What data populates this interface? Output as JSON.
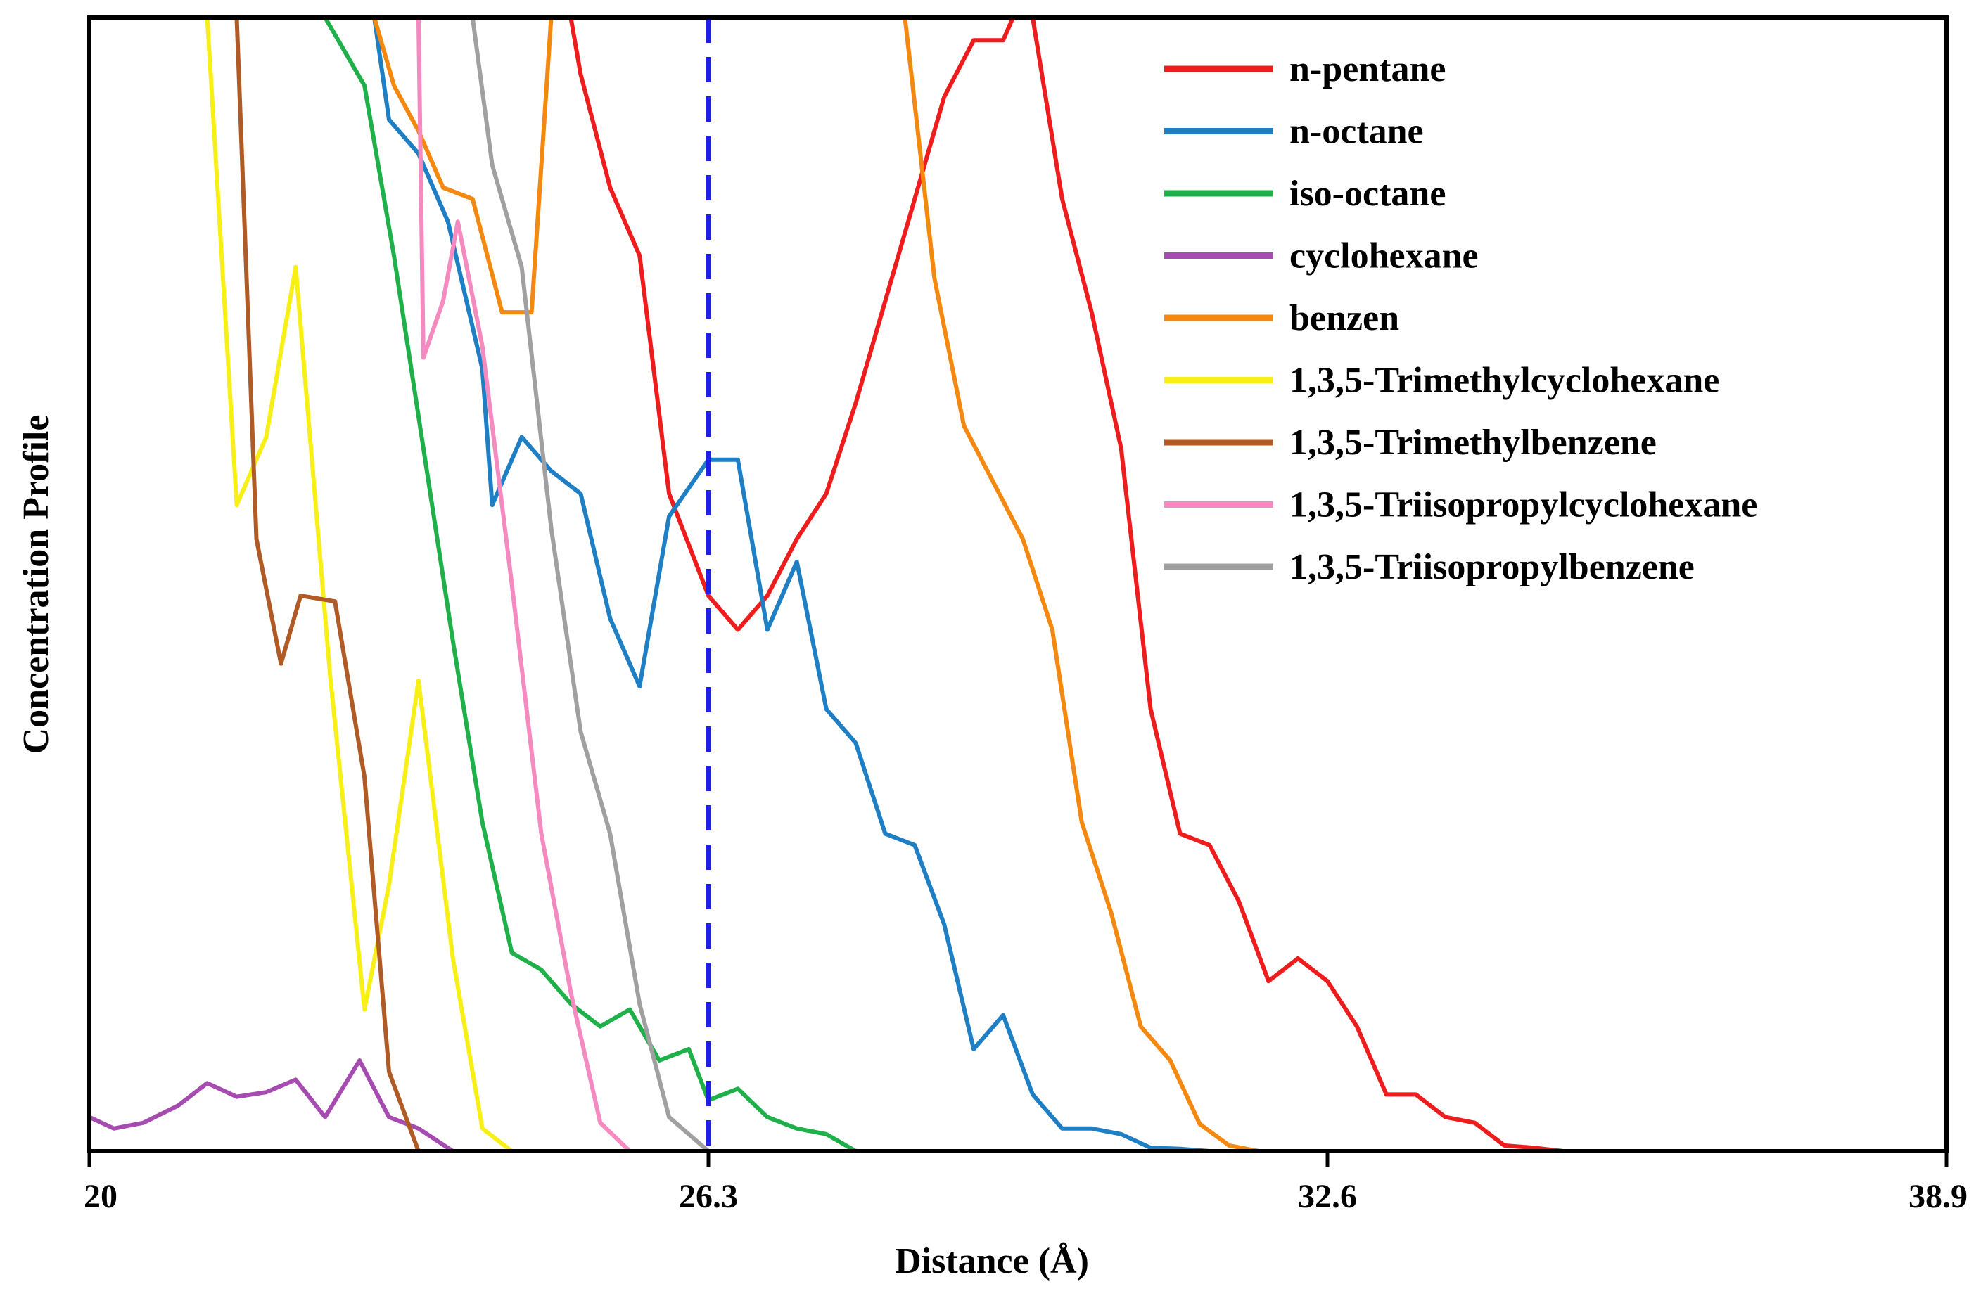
{
  "chart_data": {
    "type": "line",
    "title": "",
    "xlabel": "Distance (Å)",
    "ylabel": "Concentration Profile",
    "xlim": [
      20,
      38.9
    ],
    "ylim": [
      0,
      1
    ],
    "xticks": [
      "20",
      "26.3",
      "32.6",
      "38.9"
    ],
    "grid": false,
    "legend_position": "top-right",
    "reference_line": {
      "x": 26.3,
      "color": "#1f1fe6",
      "style": "dashed"
    },
    "series": [
      {
        "name": "n-pentane",
        "color": "#ee1c1c",
        "points": [
          [
            24.9,
            1.0
          ],
          [
            25.0,
            0.95
          ],
          [
            25.3,
            0.85
          ],
          [
            25.6,
            0.79
          ],
          [
            25.9,
            0.58
          ],
          [
            26.3,
            0.49
          ],
          [
            26.6,
            0.46
          ],
          [
            26.9,
            0.49
          ],
          [
            27.2,
            0.54
          ],
          [
            27.5,
            0.58
          ],
          [
            27.8,
            0.66
          ],
          [
            28.1,
            0.75
          ],
          [
            28.4,
            0.84
          ],
          [
            28.7,
            0.93
          ],
          [
            29.0,
            0.98
          ],
          [
            29.3,
            0.98
          ],
          [
            29.4,
            1.0
          ],
          [
            29.6,
            1.0
          ],
          [
            29.9,
            0.84
          ],
          [
            30.2,
            0.74
          ],
          [
            30.5,
            0.62
          ],
          [
            30.8,
            0.39
          ],
          [
            31.1,
            0.28
          ],
          [
            31.4,
            0.27
          ],
          [
            31.7,
            0.22
          ],
          [
            32.0,
            0.15
          ],
          [
            32.3,
            0.17
          ],
          [
            32.6,
            0.15
          ],
          [
            32.9,
            0.11
          ],
          [
            33.2,
            0.05
          ],
          [
            33.5,
            0.05
          ],
          [
            33.8,
            0.03
          ],
          [
            34.1,
            0.025
          ],
          [
            34.4,
            0.005
          ],
          [
            34.7,
            0.003
          ],
          [
            35.0,
            0.0
          ]
        ]
      },
      {
        "name": "n-octane",
        "color": "#1f7fc4",
        "points": [
          [
            22.9,
            1.0
          ],
          [
            23.05,
            0.91
          ],
          [
            23.35,
            0.88
          ],
          [
            23.65,
            0.82
          ],
          [
            24.0,
            0.69
          ],
          [
            24.1,
            0.57
          ],
          [
            24.4,
            0.63
          ],
          [
            24.7,
            0.6
          ],
          [
            25.0,
            0.58
          ],
          [
            25.3,
            0.47
          ],
          [
            25.6,
            0.41
          ],
          [
            25.9,
            0.56
          ],
          [
            26.3,
            0.61
          ],
          [
            26.6,
            0.61
          ],
          [
            26.9,
            0.46
          ],
          [
            27.2,
            0.52
          ],
          [
            27.5,
            0.39
          ],
          [
            27.8,
            0.36
          ],
          [
            28.1,
            0.28
          ],
          [
            28.4,
            0.27
          ],
          [
            28.7,
            0.2
          ],
          [
            29.0,
            0.09
          ],
          [
            29.3,
            0.12
          ],
          [
            29.6,
            0.05
          ],
          [
            29.9,
            0.02
          ],
          [
            30.2,
            0.02
          ],
          [
            30.5,
            0.015
          ],
          [
            30.8,
            0.003
          ],
          [
            31.1,
            0.002
          ],
          [
            31.4,
            0.0
          ]
        ]
      },
      {
        "name": "iso-octane",
        "color": "#1fb04a",
        "points": [
          [
            22.4,
            1.0
          ],
          [
            22.8,
            0.94
          ],
          [
            23.1,
            0.79
          ],
          [
            23.4,
            0.62
          ],
          [
            23.7,
            0.45
          ],
          [
            24.0,
            0.29
          ],
          [
            24.3,
            0.175
          ],
          [
            24.6,
            0.16
          ],
          [
            24.9,
            0.13
          ],
          [
            25.2,
            0.11
          ],
          [
            25.5,
            0.125
          ],
          [
            25.8,
            0.08
          ],
          [
            26.1,
            0.09
          ],
          [
            26.3,
            0.045
          ],
          [
            26.6,
            0.055
          ],
          [
            26.9,
            0.03
          ],
          [
            27.2,
            0.02
          ],
          [
            27.5,
            0.015
          ],
          [
            27.8,
            0.0
          ]
        ]
      },
      {
        "name": "cyclohexane",
        "color": "#a64cb0",
        "points": [
          [
            20.0,
            0.03
          ],
          [
            20.25,
            0.02
          ],
          [
            20.55,
            0.025
          ],
          [
            20.9,
            0.04
          ],
          [
            21.2,
            0.06
          ],
          [
            21.5,
            0.048
          ],
          [
            21.8,
            0.052
          ],
          [
            22.1,
            0.063
          ],
          [
            22.4,
            0.03
          ],
          [
            22.75,
            0.08
          ],
          [
            23.05,
            0.03
          ],
          [
            23.35,
            0.02
          ],
          [
            23.7,
            0.0
          ],
          [
            24.2,
            0.0
          ]
        ]
      },
      {
        "name": "benzen",
        "color": "#f5880f",
        "points": [
          [
            22.9,
            1.0
          ],
          [
            23.1,
            0.94
          ],
          [
            23.35,
            0.9
          ],
          [
            23.6,
            0.85
          ],
          [
            23.9,
            0.84
          ],
          [
            24.2,
            0.74
          ],
          [
            24.5,
            0.74
          ],
          [
            24.7,
            1.0
          ],
          [
            28.3,
            1.0
          ],
          [
            28.6,
            0.77
          ],
          [
            28.9,
            0.64
          ],
          [
            29.2,
            0.59
          ],
          [
            29.5,
            0.54
          ],
          [
            29.8,
            0.46
          ],
          [
            30.1,
            0.29
          ],
          [
            30.4,
            0.21
          ],
          [
            30.7,
            0.11
          ],
          [
            31.0,
            0.08
          ],
          [
            31.3,
            0.024
          ],
          [
            31.6,
            0.005
          ],
          [
            31.9,
            0.0
          ]
        ]
      },
      {
        "name": "1,3,5-Trimethylcyclohexane",
        "color": "#f8f015",
        "points": [
          [
            21.2,
            1.0
          ],
          [
            21.5,
            0.57
          ],
          [
            21.8,
            0.63
          ],
          [
            22.1,
            0.78
          ],
          [
            22.45,
            0.42
          ],
          [
            22.8,
            0.125
          ],
          [
            23.05,
            0.235
          ],
          [
            23.35,
            0.415
          ],
          [
            23.7,
            0.17
          ],
          [
            24.0,
            0.02
          ],
          [
            24.3,
            0.0
          ],
          [
            24.8,
            0.0
          ]
        ]
      },
      {
        "name": "1,3,5-Trimethylbenzene",
        "color": "#b05a25",
        "points": [
          [
            21.5,
            1.0
          ],
          [
            21.7,
            0.54
          ],
          [
            21.95,
            0.43
          ],
          [
            22.15,
            0.49
          ],
          [
            22.5,
            0.485
          ],
          [
            22.8,
            0.33
          ],
          [
            23.05,
            0.07
          ],
          [
            23.35,
            0.0
          ],
          [
            24.0,
            0.0
          ]
        ]
      },
      {
        "name": "1,3,5-Triisopropylcyclohexane",
        "color": "#f58ac0",
        "points": [
          [
            23.35,
            1.0
          ],
          [
            23.4,
            0.7
          ],
          [
            23.6,
            0.75
          ],
          [
            23.75,
            0.82
          ],
          [
            24.0,
            0.71
          ],
          [
            24.3,
            0.5
          ],
          [
            24.6,
            0.28
          ],
          [
            24.9,
            0.14
          ],
          [
            25.2,
            0.025
          ],
          [
            25.5,
            0.0
          ],
          [
            26.0,
            0.0
          ]
        ]
      },
      {
        "name": "1,3,5-Triisopropylbenzene",
        "color": "#a0a0a0",
        "points": [
          [
            23.9,
            1.0
          ],
          [
            24.1,
            0.87
          ],
          [
            24.4,
            0.78
          ],
          [
            24.7,
            0.55
          ],
          [
            25.0,
            0.37
          ],
          [
            25.3,
            0.28
          ],
          [
            25.6,
            0.13
          ],
          [
            25.9,
            0.03
          ],
          [
            26.3,
            0.0
          ],
          [
            38.9,
            0.0
          ]
        ]
      }
    ]
  }
}
